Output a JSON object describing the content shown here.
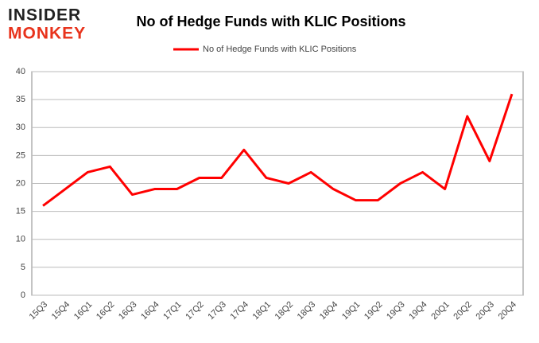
{
  "logo": {
    "line1": "INSIDER",
    "line2": "MONKEY"
  },
  "chart_data": {
    "type": "line",
    "title": "No of Hedge Funds with KLIC Positions",
    "categories": [
      "15Q3",
      "15Q4",
      "16Q1",
      "16Q2",
      "16Q3",
      "16Q4",
      "17Q1",
      "17Q2",
      "17Q3",
      "17Q4",
      "18Q1",
      "18Q2",
      "18Q3",
      "18Q4",
      "19Q1",
      "19Q2",
      "19Q3",
      "19Q4",
      "20Q1",
      "20Q2",
      "20Q3",
      "20Q4"
    ],
    "series": [
      {
        "name": "No of Hedge Funds with KLIC Positions",
        "color": "#ff0000",
        "values": [
          16,
          19,
          22,
          23,
          18,
          19,
          19,
          21,
          21,
          26,
          21,
          20,
          22,
          19,
          17,
          17,
          20,
          22,
          19,
          32,
          24,
          36
        ]
      }
    ],
    "ylim": [
      0,
      40
    ],
    "yticks": [
      0,
      5,
      10,
      15,
      20,
      25,
      30,
      35,
      40
    ],
    "grid": true,
    "legend": "top"
  }
}
